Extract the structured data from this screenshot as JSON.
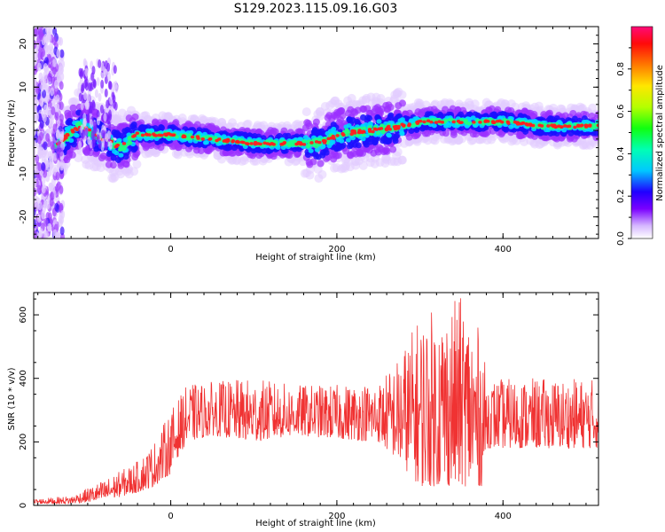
{
  "title": "S129.2023.115.09.16.G03",
  "colors": {
    "snr_line": "#f03232",
    "frame": "#000000",
    "background": "#ffffff"
  },
  "chart_data": [
    {
      "type": "heatmap",
      "xlabel": "Height of straight line (km)",
      "ylabel": "Frequency (Hz)",
      "xlim": [
        -165,
        515
      ],
      "ylim": [
        -25,
        24
      ],
      "x_ticks": [
        "0",
        "200",
        "400"
      ],
      "y_ticks": [
        "-20",
        "-10",
        "0",
        "10",
        "20"
      ],
      "colorbar": {
        "label": "Normalized spectral amplitude",
        "range": [
          0,
          1
        ],
        "ticks": [
          "0.0",
          "0.2",
          "0.4",
          "0.6",
          "0.8"
        ]
      },
      "ridge": {
        "x": [
          -135,
          -110,
          -80,
          -60,
          -40,
          0,
          50,
          100,
          150,
          180,
          200,
          240,
          280,
          300,
          350,
          400,
          450,
          510
        ],
        "frequency": [
          -3,
          1,
          -2,
          -4,
          -1,
          -1,
          -2,
          -3,
          -3,
          -3,
          -1,
          0,
          1,
          2,
          2,
          2,
          1,
          1
        ]
      }
    },
    {
      "type": "line",
      "xlabel": "Height of straight line (km)",
      "ylabel": "SNR (10 * v/v)",
      "xlim": [
        -165,
        515
      ],
      "ylim": [
        0,
        670
      ],
      "x_ticks": [
        "0",
        "200",
        "400"
      ],
      "y_ticks": [
        "0",
        "200",
        "400",
        "600"
      ],
      "envelope": {
        "x": [
          -165,
          -120,
          -80,
          -40,
          -20,
          0,
          10,
          20,
          50,
          100,
          150,
          200,
          250,
          270,
          300,
          350,
          375,
          380,
          420,
          480,
          515
        ],
        "y_low": [
          5,
          5,
          15,
          40,
          60,
          100,
          160,
          200,
          220,
          200,
          220,
          210,
          200,
          150,
          60,
          60,
          60,
          180,
          180,
          180,
          180
        ],
        "y_high": [
          20,
          30,
          80,
          140,
          200,
          300,
          340,
          380,
          390,
          400,
          380,
          380,
          390,
          450,
          600,
          660,
          540,
          400,
          400,
          400,
          400
        ]
      }
    }
  ]
}
